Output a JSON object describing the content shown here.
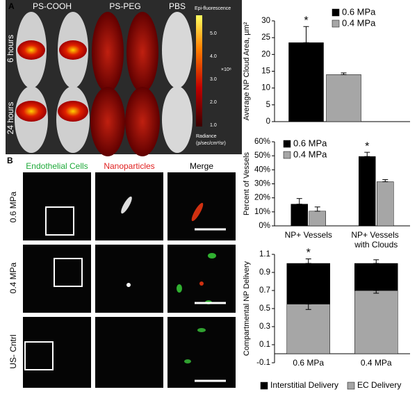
{
  "panel_a": {
    "label": "A",
    "columns": [
      "PS-COOH",
      "PS-PEG",
      "PBS"
    ],
    "rows": [
      "6 hours",
      "24 hours"
    ],
    "colorbar_title": "Epi-fluorescence",
    "colorbar_ticks": [
      "5.0",
      "4.0",
      "3.0",
      "2.0",
      "1.0"
    ],
    "colorbar_multiplier": "×10⁸",
    "colorbar_units": "Radiance",
    "colorbar_units_detail": "(p/sec/cm²/sr)"
  },
  "panel_b": {
    "label": "B",
    "columns": [
      "Endothelial Cells",
      "Nanoparticles",
      "Merge"
    ],
    "rows": [
      "0.6 MPa",
      "0.4 MPa",
      "US- Cntrl"
    ]
  },
  "chart_data": [
    {
      "type": "bar",
      "ylabel": "Average NP Cloud Area, µm²",
      "categories": [
        null
      ],
      "series": [
        {
          "name": "0.6 MPa",
          "color": "#000000",
          "values": [
            23.5
          ],
          "errors": [
            4.8
          ]
        },
        {
          "name": "0.4 MPa",
          "color": "#a6a6a6",
          "values": [
            14
          ],
          "errors": [
            0.5
          ]
        }
      ],
      "ylim": [
        0,
        30
      ],
      "yticks": [
        0,
        5,
        10,
        15,
        20,
        25,
        30
      ],
      "legend": "upper-right",
      "annotations": [
        "*"
      ]
    },
    {
      "type": "bar",
      "ylabel": "Percent of Vessels",
      "categories": [
        "NP+ Vessels",
        "NP+ Vessels with Clouds"
      ],
      "series": [
        {
          "name": "0.6 MPa",
          "color": "#000000",
          "values": [
            15.5,
            49.5
          ],
          "errors": [
            4,
            3
          ]
        },
        {
          "name": "0.4 MPa",
          "color": "#a6a6a6",
          "values": [
            10.5,
            31.5
          ],
          "errors": [
            3,
            1.5
          ]
        }
      ],
      "ylim": [
        0,
        60
      ],
      "yticks": [
        {
          "value": 0,
          "label": "0%"
        },
        {
          "value": 10,
          "label": "10%"
        },
        {
          "value": 20,
          "label": "20%"
        },
        {
          "value": 30,
          "label": "30%"
        },
        {
          "value": 40,
          "label": "40%"
        },
        {
          "value": 50,
          "label": "50%"
        },
        {
          "value": 60,
          "label": "60%"
        }
      ],
      "legend": "upper-left",
      "annotations": [
        "*"
      ]
    },
    {
      "type": "stacked",
      "ylabel": "Compartmental NP Delivery",
      "categories": [
        "0.6 MPa",
        "0.4 MPa"
      ],
      "series": [
        {
          "name": "Interstitial Delivery",
          "color": "#000000",
          "values": [
            0.45,
            0.3
          ],
          "errors": [
            0.05,
            0.04
          ]
        },
        {
          "name": "EC Delivery",
          "color": "#a6a6a6",
          "values": [
            0.55,
            0.7
          ],
          "errors": [
            0.06,
            0.03
          ]
        }
      ],
      "ylim": [
        -0.1,
        1.1
      ],
      "yticks": [
        -0.1,
        0.1,
        0.3,
        0.5,
        0.7,
        0.9,
        1.1
      ],
      "legend": "bottom",
      "annotations": [
        "*"
      ]
    }
  ]
}
